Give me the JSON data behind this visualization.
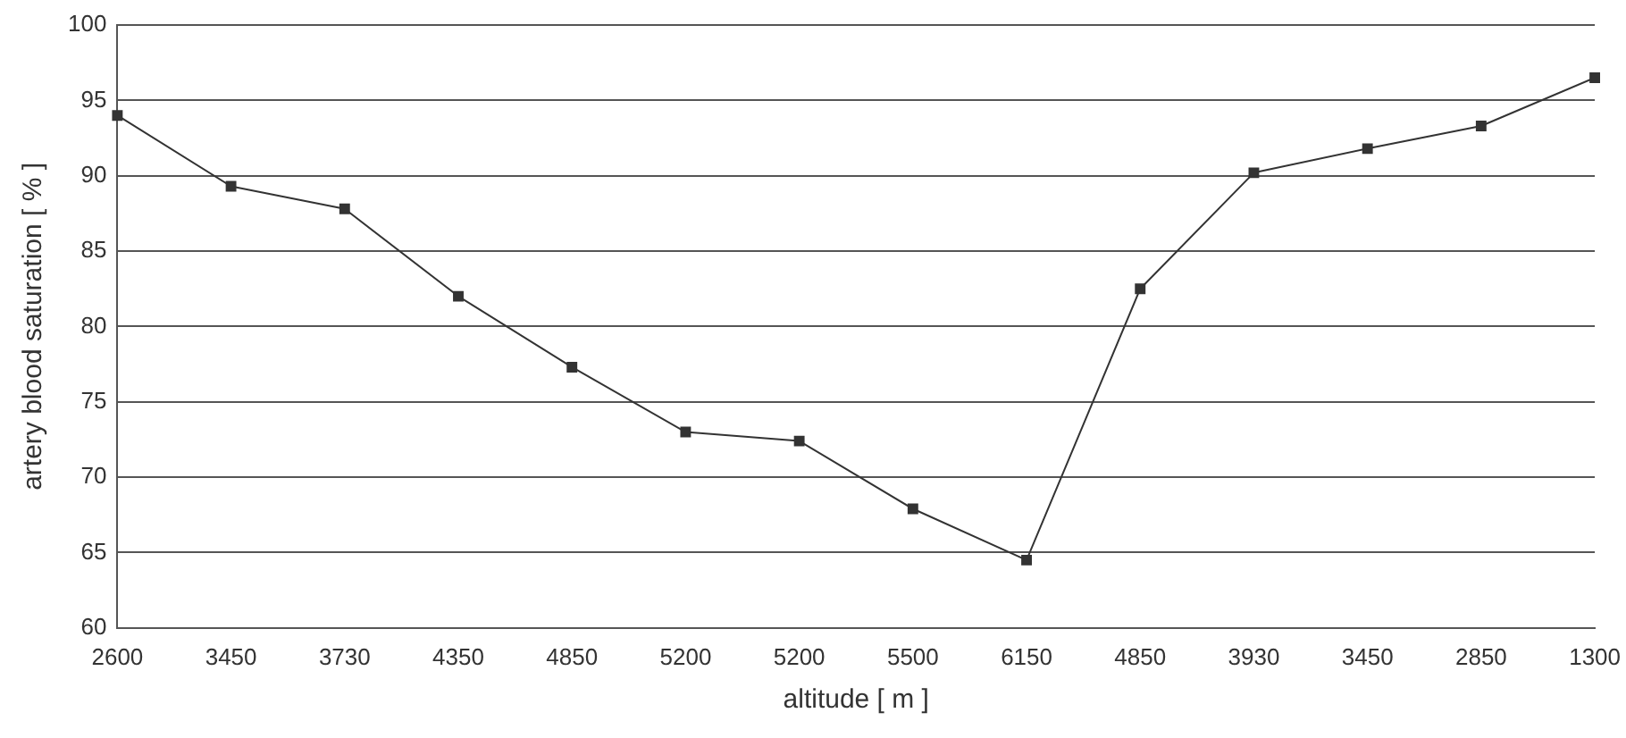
{
  "chart_data": {
    "type": "line",
    "xlabel": "altitude [ m ]",
    "ylabel": "artery blood saturation [ % ]",
    "categories": [
      "2600",
      "3450",
      "3730",
      "4350",
      "4850",
      "5200",
      "5200",
      "5500",
      "6150",
      "4850",
      "3930",
      "3450",
      "2850",
      "1300"
    ],
    "series": [
      {
        "color": "#333333",
        "values": [
          94,
          89.3,
          87.8,
          82,
          77.3,
          73,
          72.4,
          67.9,
          64.5,
          82.5,
          90.2,
          91.8,
          93.3,
          96.5
        ]
      }
    ],
    "ylim": [
      60,
      100
    ],
    "yticks": [
      60,
      65,
      70,
      75,
      80,
      85,
      90,
      95,
      100
    ],
    "grid": "y",
    "legend": false,
    "marker": "square",
    "line_style": "solid"
  }
}
